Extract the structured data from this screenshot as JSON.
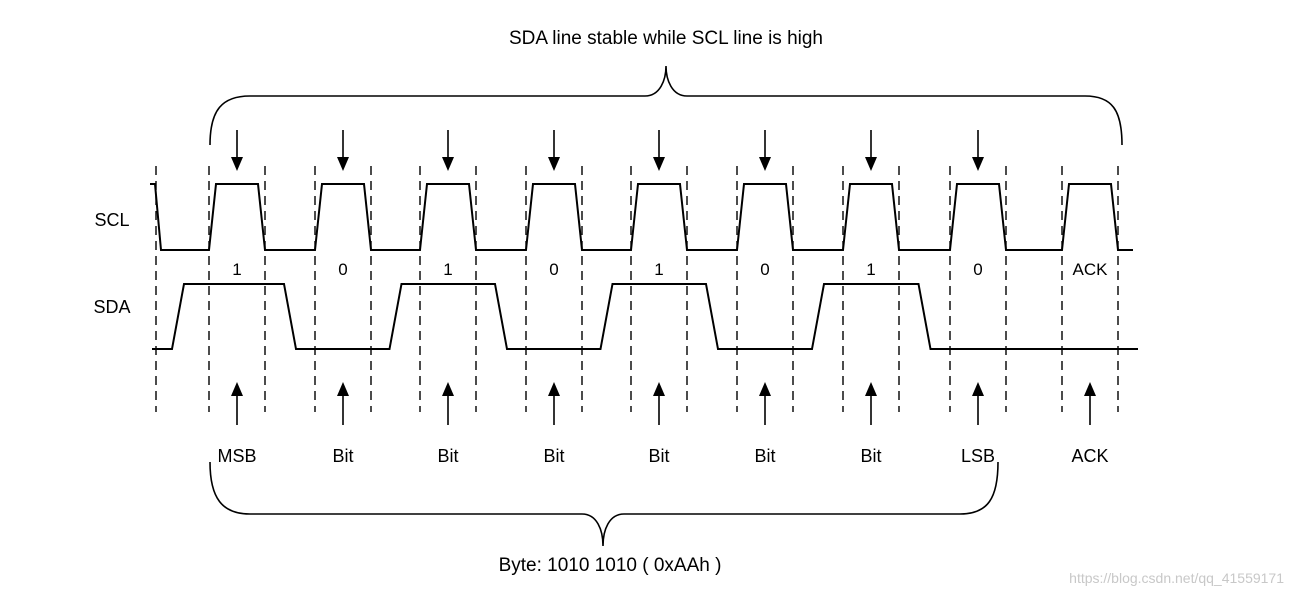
{
  "diagram": {
    "top_caption": "SDA line stable while SCL line is high",
    "bottom_caption": "Byte: 1010 1010 ( 0xAAh )",
    "signals": {
      "clock": "SCL",
      "data": "SDA"
    },
    "bits": [
      {
        "value": "1",
        "label": "MSB"
      },
      {
        "value": "0",
        "label": "Bit"
      },
      {
        "value": "1",
        "label": "Bit"
      },
      {
        "value": "0",
        "label": "Bit"
      },
      {
        "value": "1",
        "label": "Bit"
      },
      {
        "value": "0",
        "label": "Bit"
      },
      {
        "value": "1",
        "label": "Bit"
      },
      {
        "value": "0",
        "label": "LSB"
      }
    ],
    "ack": {
      "value": "ACK",
      "label": "ACK"
    },
    "watermark": "https://blog.csdn.net/qq_41559171"
  }
}
